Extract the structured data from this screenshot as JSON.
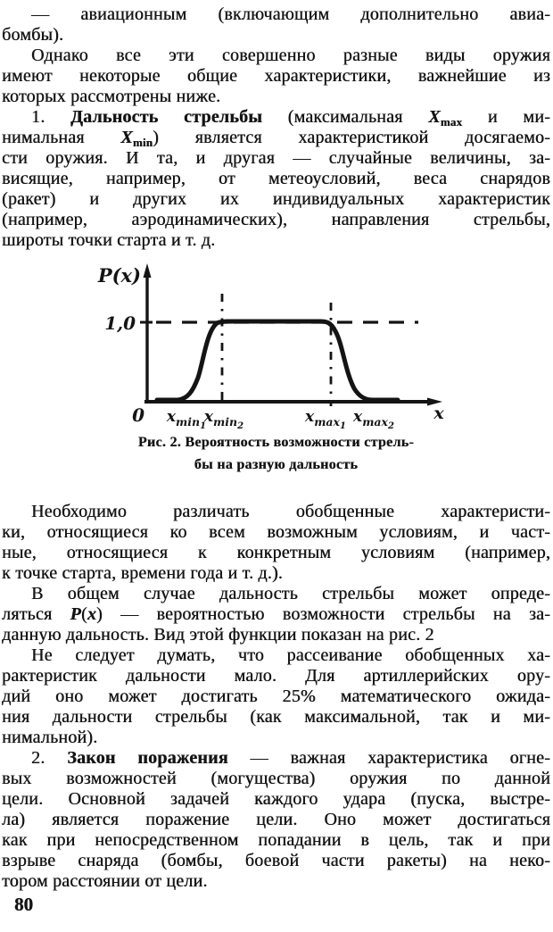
{
  "page": {
    "number": "80"
  },
  "content": {
    "top_lines": [
      {
        "ind": true,
        "seg": [
          {
            "t": "— авиационным (включающим дополнительно авиа-"
          }
        ]
      },
      {
        "end": true,
        "seg": [
          {
            "t": "бомбы)."
          }
        ]
      },
      {
        "ind": true,
        "seg": [
          {
            "t": "Однако все эти совершенно разные виды оружия"
          }
        ]
      },
      {
        "seg": [
          {
            "t": "имеют некоторые общие характеристики, важнейшие из"
          }
        ]
      },
      {
        "end": true,
        "seg": [
          {
            "t": "которых рассмотрены ниже."
          }
        ]
      },
      {
        "ind": true,
        "seg": [
          {
            "t": "1. "
          },
          {
            "t": "Дальность стрельбы",
            "b": true
          },
          {
            "t": " (максимальная "
          },
          {
            "t": "X",
            "i": true,
            "b": true
          },
          {
            "t": "max",
            "sub": true
          },
          {
            "t": " и ми-"
          }
        ]
      },
      {
        "seg": [
          {
            "t": "нимальная "
          },
          {
            "t": "X",
            "i": true,
            "b": true
          },
          {
            "t": "min",
            "sub": true
          },
          {
            "t": ") является характеристикой досягаемо-"
          }
        ]
      },
      {
        "seg": [
          {
            "t": "сти оружия. И та, и другая — случайные величины, за-"
          }
        ]
      },
      {
        "seg": [
          {
            "t": "висящие, например, от метеоусловий, веса снарядов"
          }
        ]
      },
      {
        "seg": [
          {
            "t": "(ракет) и других их индивидуальных характеристик"
          }
        ]
      },
      {
        "seg": [
          {
            "t": "(например, аэродинамических), направления стрельбы,"
          }
        ]
      },
      {
        "end": true,
        "seg": [
          {
            "t": "широты точки старта и т. д."
          }
        ]
      }
    ],
    "bottom_lines": [
      {
        "ind": true,
        "seg": [
          {
            "t": "Необходимо различать обобщенные характеристи-"
          }
        ]
      },
      {
        "seg": [
          {
            "t": "ки, относящиеся ко всем возможным условиям, и част-"
          }
        ]
      },
      {
        "seg": [
          {
            "t": "ные, относящиеся к конкретным условиям (например,"
          }
        ]
      },
      {
        "end": true,
        "seg": [
          {
            "t": "к точке старта, времени года и т. д.)."
          }
        ]
      },
      {
        "ind": true,
        "seg": [
          {
            "t": "В общем случае дальность стрельбы может опреде-"
          }
        ]
      },
      {
        "seg": [
          {
            "t": "ляться "
          },
          {
            "t": "P",
            "i": true,
            "b": true
          },
          {
            "t": "("
          },
          {
            "t": "x",
            "i": true,
            "b": true
          },
          {
            "t": ") — вероятностью возможности стрельбы на за-"
          }
        ]
      },
      {
        "end": true,
        "seg": [
          {
            "t": "данную дальность. Вид этой функции показан на рис. 2"
          }
        ]
      },
      {
        "ind": true,
        "seg": [
          {
            "t": "Не следует думать, что рассеивание обобщенных ха-"
          }
        ]
      },
      {
        "seg": [
          {
            "t": "рактеристик дальности мало. Для артиллерийских ору-"
          }
        ]
      },
      {
        "seg": [
          {
            "t": "дий оно может достигать 25% математического ожида-"
          }
        ]
      },
      {
        "seg": [
          {
            "t": "ния дальности стрельбы (как максимальной, так и ми-"
          }
        ]
      },
      {
        "end": true,
        "seg": [
          {
            "t": "нимальной)."
          }
        ]
      },
      {
        "ind": true,
        "seg": [
          {
            "t": "2. "
          },
          {
            "t": "Закон поражения",
            "b": true
          },
          {
            "t": " — важная характеристика огне-"
          }
        ]
      },
      {
        "seg": [
          {
            "t": "вых возможностей (могущества) оружия по данной"
          }
        ]
      },
      {
        "seg": [
          {
            "t": "цели. Основной задачей каждого удара (пуска, выстре-"
          }
        ]
      },
      {
        "seg": [
          {
            "t": "ла) является поражение цели. Оно может достигаться"
          }
        ]
      },
      {
        "seg": [
          {
            "t": "как при непосредственном попадании в цель, так и при"
          }
        ]
      },
      {
        "seg": [
          {
            "t": "взрыве снаряда (бомбы, боевой части ракеты) на неко-"
          }
        ]
      },
      {
        "end": true,
        "seg": [
          {
            "t": "тором расстоянии от цели."
          }
        ]
      }
    ]
  },
  "figure": {
    "caption": [
      "Рис. 2. Вероятность возможности стрель-",
      "бы на разную дальность"
    ],
    "y_axis_label": "P(x)",
    "y_tick_label": "1,0",
    "origin_label": "0",
    "x_axis_label": "x",
    "x_ticks": [
      {
        "base": "x",
        "sub": "min",
        "index": "1"
      },
      {
        "base": "x",
        "sub": "min",
        "index": "2"
      },
      {
        "base": "x",
        "sub": "max",
        "index": "1"
      },
      {
        "base": "x",
        "sub": "max",
        "index": "2"
      }
    ]
  },
  "chart_data": {
    "type": "line",
    "title": "Рис. 2. Вероятность возможности стрельбы на разную дальность",
    "xlabel": "x",
    "ylabel": "P(x)",
    "ylim": [
      0,
      1.2
    ],
    "x_tick_labels": [
      "x_min1",
      "x_min2",
      "x_max1",
      "x_max2"
    ],
    "y_tick_labels": [
      "1,0"
    ],
    "grid": false,
    "legend": "none",
    "annotations": [
      "dashed horizontal line at P(x)=1,0",
      "dash-dot vertical lines at x_min2 and x_max1"
    ],
    "series": [
      {
        "name": "P(x)",
        "description": "Probability of being able to fire at range x: 0 below x_min1, sigmoid rise to 1.0 between x_min1 and x_min2, plateau at 1.0, sigmoid fall to 0 between x_max1 and x_max2",
        "points_normalized": [
          [
            0.0,
            0
          ],
          [
            0.1,
            0
          ],
          [
            0.14,
            0.1
          ],
          [
            0.18,
            0.5
          ],
          [
            0.21,
            0.9
          ],
          [
            0.25,
            1.0
          ],
          [
            0.55,
            1.0
          ],
          [
            0.58,
            0.95
          ],
          [
            0.62,
            0.6
          ],
          [
            0.66,
            0.2
          ],
          [
            0.7,
            0.02
          ],
          [
            0.8,
            0
          ]
        ]
      }
    ]
  }
}
